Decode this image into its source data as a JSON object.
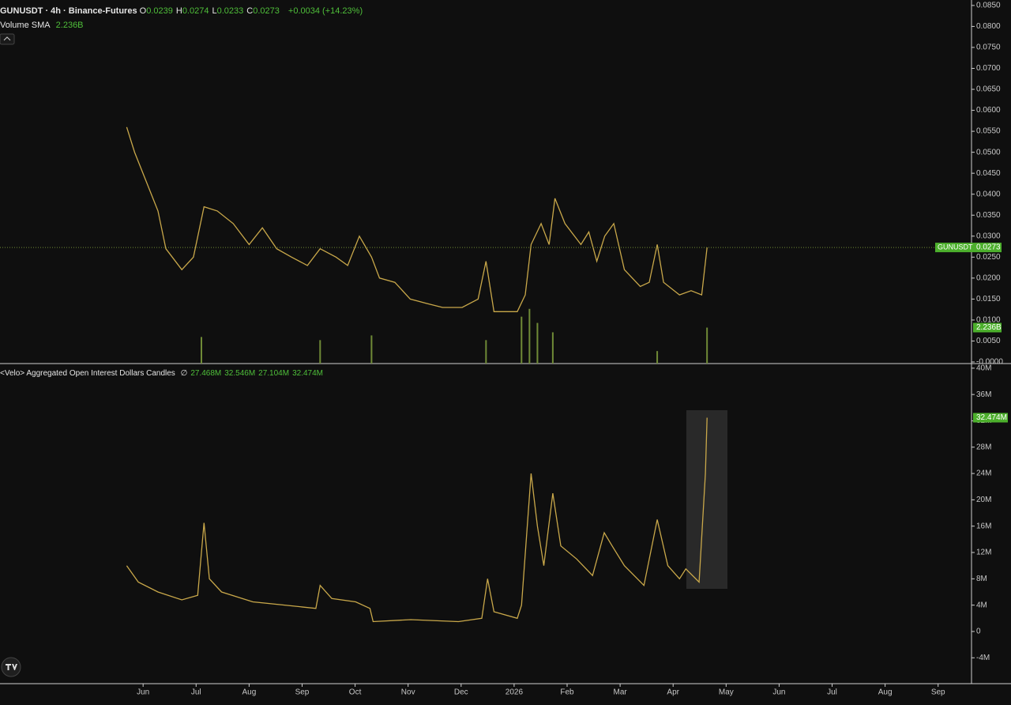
{
  "header": {
    "symbol": "GUNUSDT · 4h · Binance-Futures",
    "ohlc": [
      {
        "label": "O",
        "value": "0.0239"
      },
      {
        "label": "H",
        "value": "0.0274"
      },
      {
        "label": "L",
        "value": "0.0233"
      },
      {
        "label": "C",
        "value": "0.0273"
      }
    ],
    "change": "+0.0034 (+14.23%)",
    "volume_label": "Volume SMA",
    "volume_value": "2.236B"
  },
  "chart_data": [
    {
      "type": "line",
      "series": [
        {
          "name": "GUNUSDT",
          "color": "#c9a84a",
          "last_label": "0.0273",
          "x": [
            -0.31,
            -0.16,
            0.06,
            0.28,
            0.43,
            0.73,
            0.95,
            1.15,
            1.4,
            1.7,
            2.0,
            2.25,
            2.52,
            2.8,
            3.1,
            3.34,
            3.64,
            3.86,
            4.08,
            4.31,
            4.46,
            4.75,
            5.04,
            5.34,
            5.65,
            6.02,
            6.32,
            6.47,
            6.62,
            7.06,
            7.21,
            7.32,
            7.51,
            7.66,
            7.77,
            7.96,
            8.26,
            8.41,
            8.56,
            8.71,
            8.88,
            9.08,
            9.38,
            9.55,
            9.7,
            9.82,
            10.12,
            10.34,
            10.54,
            10.64
          ],
          "values": [
            0.056,
            0.05,
            0.043,
            0.036,
            0.027,
            0.022,
            0.025,
            0.037,
            0.036,
            0.033,
            0.028,
            0.032,
            0.027,
            0.025,
            0.023,
            0.027,
            0.025,
            0.023,
            0.03,
            0.025,
            0.02,
            0.019,
            0.015,
            0.014,
            0.013,
            0.013,
            0.015,
            0.024,
            0.012,
            0.012,
            0.016,
            0.028,
            0.033,
            0.028,
            0.039,
            0.033,
            0.028,
            0.031,
            0.024,
            0.03,
            0.033,
            0.022,
            0.018,
            0.019,
            0.028,
            0.019,
            0.016,
            0.017,
            0.016,
            0.0273
          ]
        }
      ],
      "volume": {
        "color": "#6f8a36",
        "sma_label": "2.236B",
        "ylim": [
          0,
          22.9
        ],
        "x": [
          1.1,
          3.34,
          4.31,
          6.47,
          7.14,
          7.29,
          7.44,
          7.73,
          9.7,
          10.64
        ],
        "values": [
          1.7,
          1.5,
          1.8,
          1.5,
          3.0,
          3.5,
          2.6,
          2.0,
          0.8,
          2.3
        ]
      },
      "ylim": [
        -0.00038,
        0.0863
      ],
      "xlim": [
        -2.7,
        15.63
      ],
      "yticks": [
        {
          "value": 0.085,
          "label": "0.0850"
        },
        {
          "value": 0.08,
          "label": "0.0800"
        },
        {
          "value": 0.075,
          "label": "0.0750"
        },
        {
          "value": 0.07,
          "label": "0.0700"
        },
        {
          "value": 0.065,
          "label": "0.0650"
        },
        {
          "value": 0.06,
          "label": "0.0600"
        },
        {
          "value": 0.055,
          "label": "0.0550"
        },
        {
          "value": 0.05,
          "label": "0.0500"
        },
        {
          "value": 0.045,
          "label": "0.0450"
        },
        {
          "value": 0.04,
          "label": "0.0400"
        },
        {
          "value": 0.035,
          "label": "0.0350"
        },
        {
          "value": 0.03,
          "label": "0.0300"
        },
        {
          "value": 0.025,
          "label": "0.0250"
        },
        {
          "value": 0.02,
          "label": "0.0200"
        },
        {
          "value": 0.015,
          "label": "0.0150"
        },
        {
          "value": 0.01,
          "label": "0.0100"
        },
        {
          "value": 0.005,
          "label": "0.0050"
        },
        {
          "value": 0,
          "label": "-0.0000"
        }
      ]
    },
    {
      "type": "line",
      "title": "<Velo> Aggregated Open Interest Dollars Candles",
      "legend_values": [
        "∅",
        "27.468M",
        "32.546M",
        "27.104M",
        "32.474M"
      ],
      "series": [
        {
          "name": "Open Interest",
          "color": "#c9a84a",
          "last_label": "32.474M",
          "x": [
            -0.31,
            -0.09,
            0.28,
            0.73,
            1.03,
            1.15,
            1.25,
            1.48,
            2.07,
            2.67,
            3.26,
            3.34,
            3.56,
            4.01,
            4.28,
            4.34,
            5.05,
            5.95,
            6.39,
            6.5,
            6.62,
            7.06,
            7.14,
            7.32,
            7.44,
            7.56,
            7.73,
            7.88,
            8.18,
            8.48,
            8.7,
            8.85,
            9.08,
            9.45,
            9.7,
            9.9,
            10.12,
            10.24,
            10.49,
            10.61,
            10.64
          ],
          "values": [
            10,
            7.5,
            6,
            4.8,
            5.5,
            16.5,
            8,
            6,
            4.5,
            4,
            3.5,
            7,
            5,
            4.5,
            3.5,
            1.5,
            1.8,
            1.5,
            2,
            8,
            3,
            2,
            4,
            24,
            16,
            10,
            21,
            13,
            11,
            8.5,
            15,
            13,
            10,
            7,
            17,
            10,
            8,
            9.5,
            7.5,
            24,
            32.474
          ]
        }
      ],
      "ylim": [
        -7.93,
        40.7
      ],
      "xlim": [
        -2.7,
        15.63
      ],
      "yticks": [
        {
          "value": 40,
          "label": "40M"
        },
        {
          "value": 36,
          "label": "36M"
        },
        {
          "value": 32,
          "label": "32M"
        },
        {
          "value": 28,
          "label": "28M"
        },
        {
          "value": 24,
          "label": "24M"
        },
        {
          "value": 20,
          "label": "20M"
        },
        {
          "value": 16,
          "label": "16M"
        },
        {
          "value": 12,
          "label": "12M"
        },
        {
          "value": 8,
          "label": "8M"
        },
        {
          "value": 4,
          "label": "4M"
        },
        0,
        {
          "value": -4,
          "label": "-4M"
        }
      ],
      "xticks": [
        {
          "value": 0,
          "label": "Jun"
        },
        {
          "value": 1,
          "label": "Jul"
        },
        {
          "value": 2,
          "label": "Aug"
        },
        {
          "value": 3,
          "label": "Sep"
        },
        {
          "value": 4,
          "label": "Oct"
        },
        {
          "value": 5,
          "label": "Nov"
        },
        {
          "value": 6,
          "label": "Dec"
        },
        {
          "value": 7,
          "label": "2026"
        },
        {
          "value": 8,
          "label": "Feb"
        },
        {
          "value": 9,
          "label": "Mar"
        },
        {
          "value": 10,
          "label": "Apr"
        },
        {
          "value": 11,
          "label": "May"
        },
        {
          "value": 12,
          "label": "Jun"
        },
        {
          "value": 13,
          "label": "Jul"
        },
        {
          "value": 14,
          "label": "Aug"
        },
        {
          "value": 15,
          "label": "Sep"
        }
      ]
    }
  ]
}
